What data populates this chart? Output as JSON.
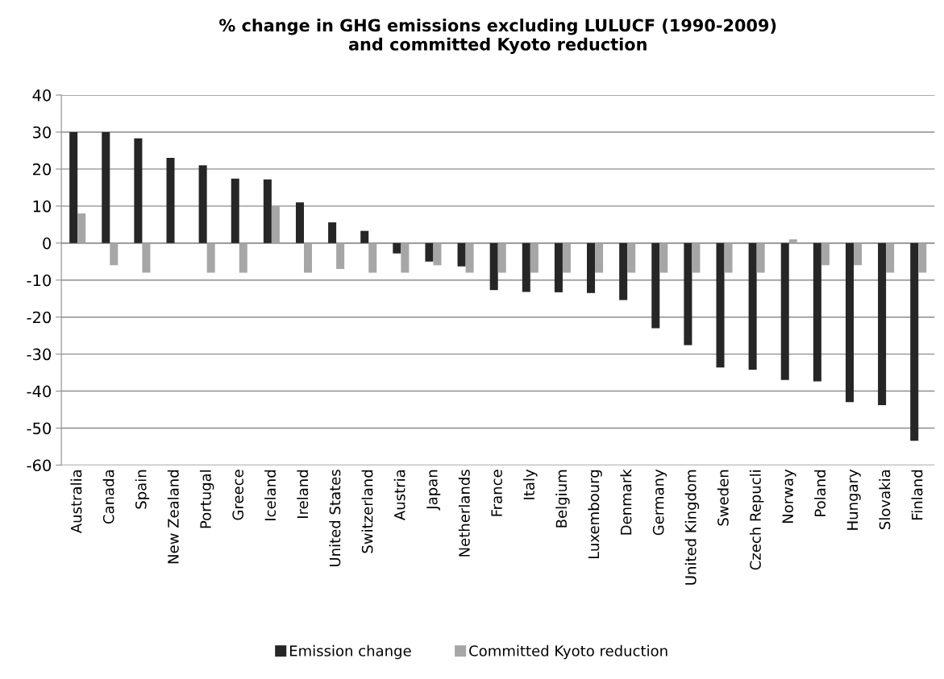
{
  "chart_data": {
    "type": "bar",
    "title": "% change in GHG emissions excluding LULUCF (1990-2009)\nand committed Kyoto reduction",
    "categories": [
      "Australia",
      "Canada",
      "Spain",
      "New Zealand",
      "Portugal",
      "Greece",
      "Iceland",
      "Ireland",
      "United States",
      "Switzerland",
      "Austria",
      "Japan",
      "Netherlands",
      "France",
      "Italy",
      "Belgium",
      "Luxembourg",
      "Denmark",
      "Germany",
      "United Kingdom",
      "Sweden",
      "Czech Repucli",
      "Norway",
      "Poland",
      "Hungary",
      "Slovakia",
      "Finland"
    ],
    "series": [
      {
        "name": "Emission change",
        "color": "#262626",
        "values": [
          30,
          30,
          28.3,
          23,
          21,
          17.4,
          17.2,
          11,
          5.6,
          3.3,
          -2.8,
          -5,
          -6.3,
          -12.7,
          -13.2,
          -13.3,
          -13.5,
          -15.4,
          -23,
          -27.6,
          -33.6,
          -34.2,
          -37,
          -37.4,
          -43,
          -43.8,
          -53.4
        ]
      },
      {
        "name": "Committed Kyoto reduction",
        "color": "#a6a6a6",
        "values": [
          8,
          -6,
          -8,
          0,
          -8,
          -8,
          10,
          -8,
          -7,
          -8,
          -8,
          -6,
          -8,
          -8,
          -8,
          -8,
          -8,
          -8,
          -8,
          -8,
          -8,
          -8,
          1,
          -6,
          -6,
          -8,
          -8
        ]
      }
    ],
    "ylim": [
      -60,
      40
    ],
    "yticks": [
      -60,
      -50,
      -40,
      -30,
      -20,
      -10,
      0,
      10,
      20,
      30,
      40
    ],
    "grid": "y",
    "legend": "bottom"
  }
}
